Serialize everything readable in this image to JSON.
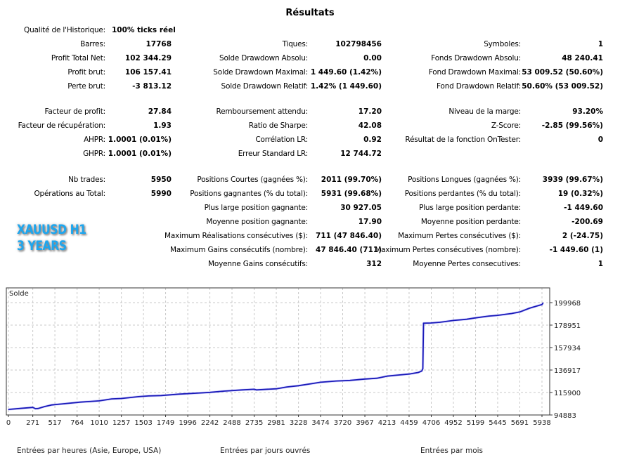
{
  "title": "Résultats",
  "top_block": {
    "history_quality": {
      "label": "Qualité de l'Historique:",
      "value": "100% ticks réel"
    },
    "col1": [
      {
        "label": "Barres:",
        "value": "17768"
      },
      {
        "label": "Profit Total Net:",
        "value": "102 344.29"
      },
      {
        "label": "Profit brut:",
        "value": "106 157.41"
      },
      {
        "label": "Perte brut:",
        "value": "-3 813.12"
      }
    ],
    "col2": [
      {
        "label": "Tiques:",
        "value": "102798456"
      },
      {
        "label": "Solde Drawdown Absolu:",
        "value": "0.00"
      },
      {
        "label": "Solde Drawdown Maximal:",
        "value": "1 449.60 (1.42%)"
      },
      {
        "label": "Solde Drawdown Relatif:",
        "value": "1.42% (1 449.60)"
      }
    ],
    "col3": [
      {
        "label": "Symboles:",
        "value": "1"
      },
      {
        "label": "Fonds Drawdown Absolu:",
        "value": "48 240.41"
      },
      {
        "label": "Fond Drawdown Maximal:",
        "value": "53 009.52 (50.60%)"
      },
      {
        "label": "Fond Drawdown Relatif:",
        "value": "50.60% (53 009.52)"
      }
    ]
  },
  "mid_block": {
    "col1": [
      {
        "label": "Facteur de profit:",
        "value": "27.84"
      },
      {
        "label": "Facteur de récupération:",
        "value": "1.93"
      },
      {
        "label": "AHPR:",
        "value": "1.0001 (0.01%)"
      },
      {
        "label": "GHPR:",
        "value": "1.0001 (0.01%)"
      }
    ],
    "col2": [
      {
        "label": "Remboursement attendu:",
        "value": "17.20"
      },
      {
        "label": "Ratio de Sharpe:",
        "value": "42.08"
      },
      {
        "label": "Corrélation LR:",
        "value": "0.92"
      },
      {
        "label": "Erreur Standard LR:",
        "value": "12 744.72"
      }
    ],
    "col3": [
      {
        "label": "Niveau de la marge:",
        "value": "93.20%"
      },
      {
        "label": "Z-Score:",
        "value": "-2.85 (99.56%)"
      },
      {
        "label": "Résultat de la fonction OnTester:",
        "value": "0"
      }
    ]
  },
  "trades_block": {
    "col1": [
      {
        "label": "Nb trades:",
        "value": "5950"
      },
      {
        "label": "Opérations au Total:",
        "value": "5990"
      }
    ],
    "col2": [
      {
        "label": "Positions Courtes (gagnées %):",
        "value": "2011 (99.70%)"
      },
      {
        "label": "Positions gagnantes (% du total):",
        "value": "5931 (99.68%)"
      },
      {
        "label": "Plus large position gagnante:",
        "value": "30 927.05"
      },
      {
        "label": "Moyenne position gagnante:",
        "value": "17.90"
      },
      {
        "label": "Maximum Réalisations consécutives ($):",
        "value": "711 (47 846.40)"
      },
      {
        "label": "Maximum Gains consécutifs (nombre):",
        "value": "47 846.40 (711)"
      },
      {
        "label": "Moyenne Gains consécutifs:",
        "value": "312"
      }
    ],
    "col3": [
      {
        "label": "Positions Longues (gagnées %):",
        "value": "3939 (99.67%)"
      },
      {
        "label": "Positions perdantes (% du total):",
        "value": "19 (0.32%)"
      },
      {
        "label": "Plus large position perdante:",
        "value": "-1 449.60"
      },
      {
        "label": "Moyenne position perdante:",
        "value": "-200.69"
      },
      {
        "label": "Maximum Pertes consécutives ($):",
        "value": "2 (-24.75)"
      },
      {
        "label": "Maximum Pertes consécutives (nombre):",
        "value": "-1 449.60 (1)"
      },
      {
        "label": "Moyenne Pertes consecutives:",
        "value": "1"
      }
    ]
  },
  "badge": {
    "line1": "XAUUSD H1",
    "line2": "3 YEARS",
    "color": "#1ea6ee"
  },
  "chart_data": {
    "type": "line",
    "title": "Solde",
    "xlabel": "",
    "ylabel": "",
    "grid": true,
    "line_color": "#1a1ab8",
    "xlim": [
      0,
      5950
    ],
    "ylim": [
      94883,
      199968
    ],
    "x_ticks": [
      0,
      271,
      517,
      764,
      1010,
      1257,
      1503,
      1749,
      1996,
      2242,
      2488,
      2735,
      2981,
      3228,
      3474,
      3720,
      3967,
      4213,
      4459,
      4706,
      4952,
      5199,
      5445,
      5691,
      5938
    ],
    "y_ticks": [
      94883,
      115900,
      136917,
      157934,
      178951,
      199968
    ],
    "series": [
      {
        "name": "Solde",
        "x": [
          0,
          120,
          271,
          300,
          330,
          400,
          480,
          620,
          800,
          1010,
          1150,
          1257,
          1450,
          1560,
          1700,
          1900,
          2100,
          2242,
          2400,
          2600,
          2735,
          2760,
          2981,
          3100,
          3228,
          3400,
          3474,
          3650,
          3800,
          3967,
          4100,
          4213,
          4350,
          4459,
          4560,
          4600,
          4612,
          4620,
          4700,
          4800,
          4952,
          5100,
          5199,
          5350,
          5445,
          5600,
          5691,
          5800,
          5938,
          5950
        ],
        "y": [
          100100,
          100900,
          102000,
          100800,
          100900,
          102700,
          104300,
          105400,
          106900,
          108100,
          109900,
          110300,
          112000,
          112700,
          113100,
          114400,
          115300,
          116000,
          117200,
          118300,
          118900,
          118300,
          119400,
          121100,
          122300,
          124500,
          125500,
          126700,
          127200,
          128500,
          129200,
          131200,
          132300,
          133200,
          134600,
          136000,
          138200,
          180700,
          180900,
          181600,
          183300,
          184400,
          185700,
          187400,
          188100,
          189800,
          191200,
          194800,
          198200,
          199700
        ]
      }
    ]
  },
  "bottom_labels": [
    "Entrées par heures (Asie, Europe, USA)",
    "Entrées par jours ouvrés",
    "Entrées par mois"
  ]
}
